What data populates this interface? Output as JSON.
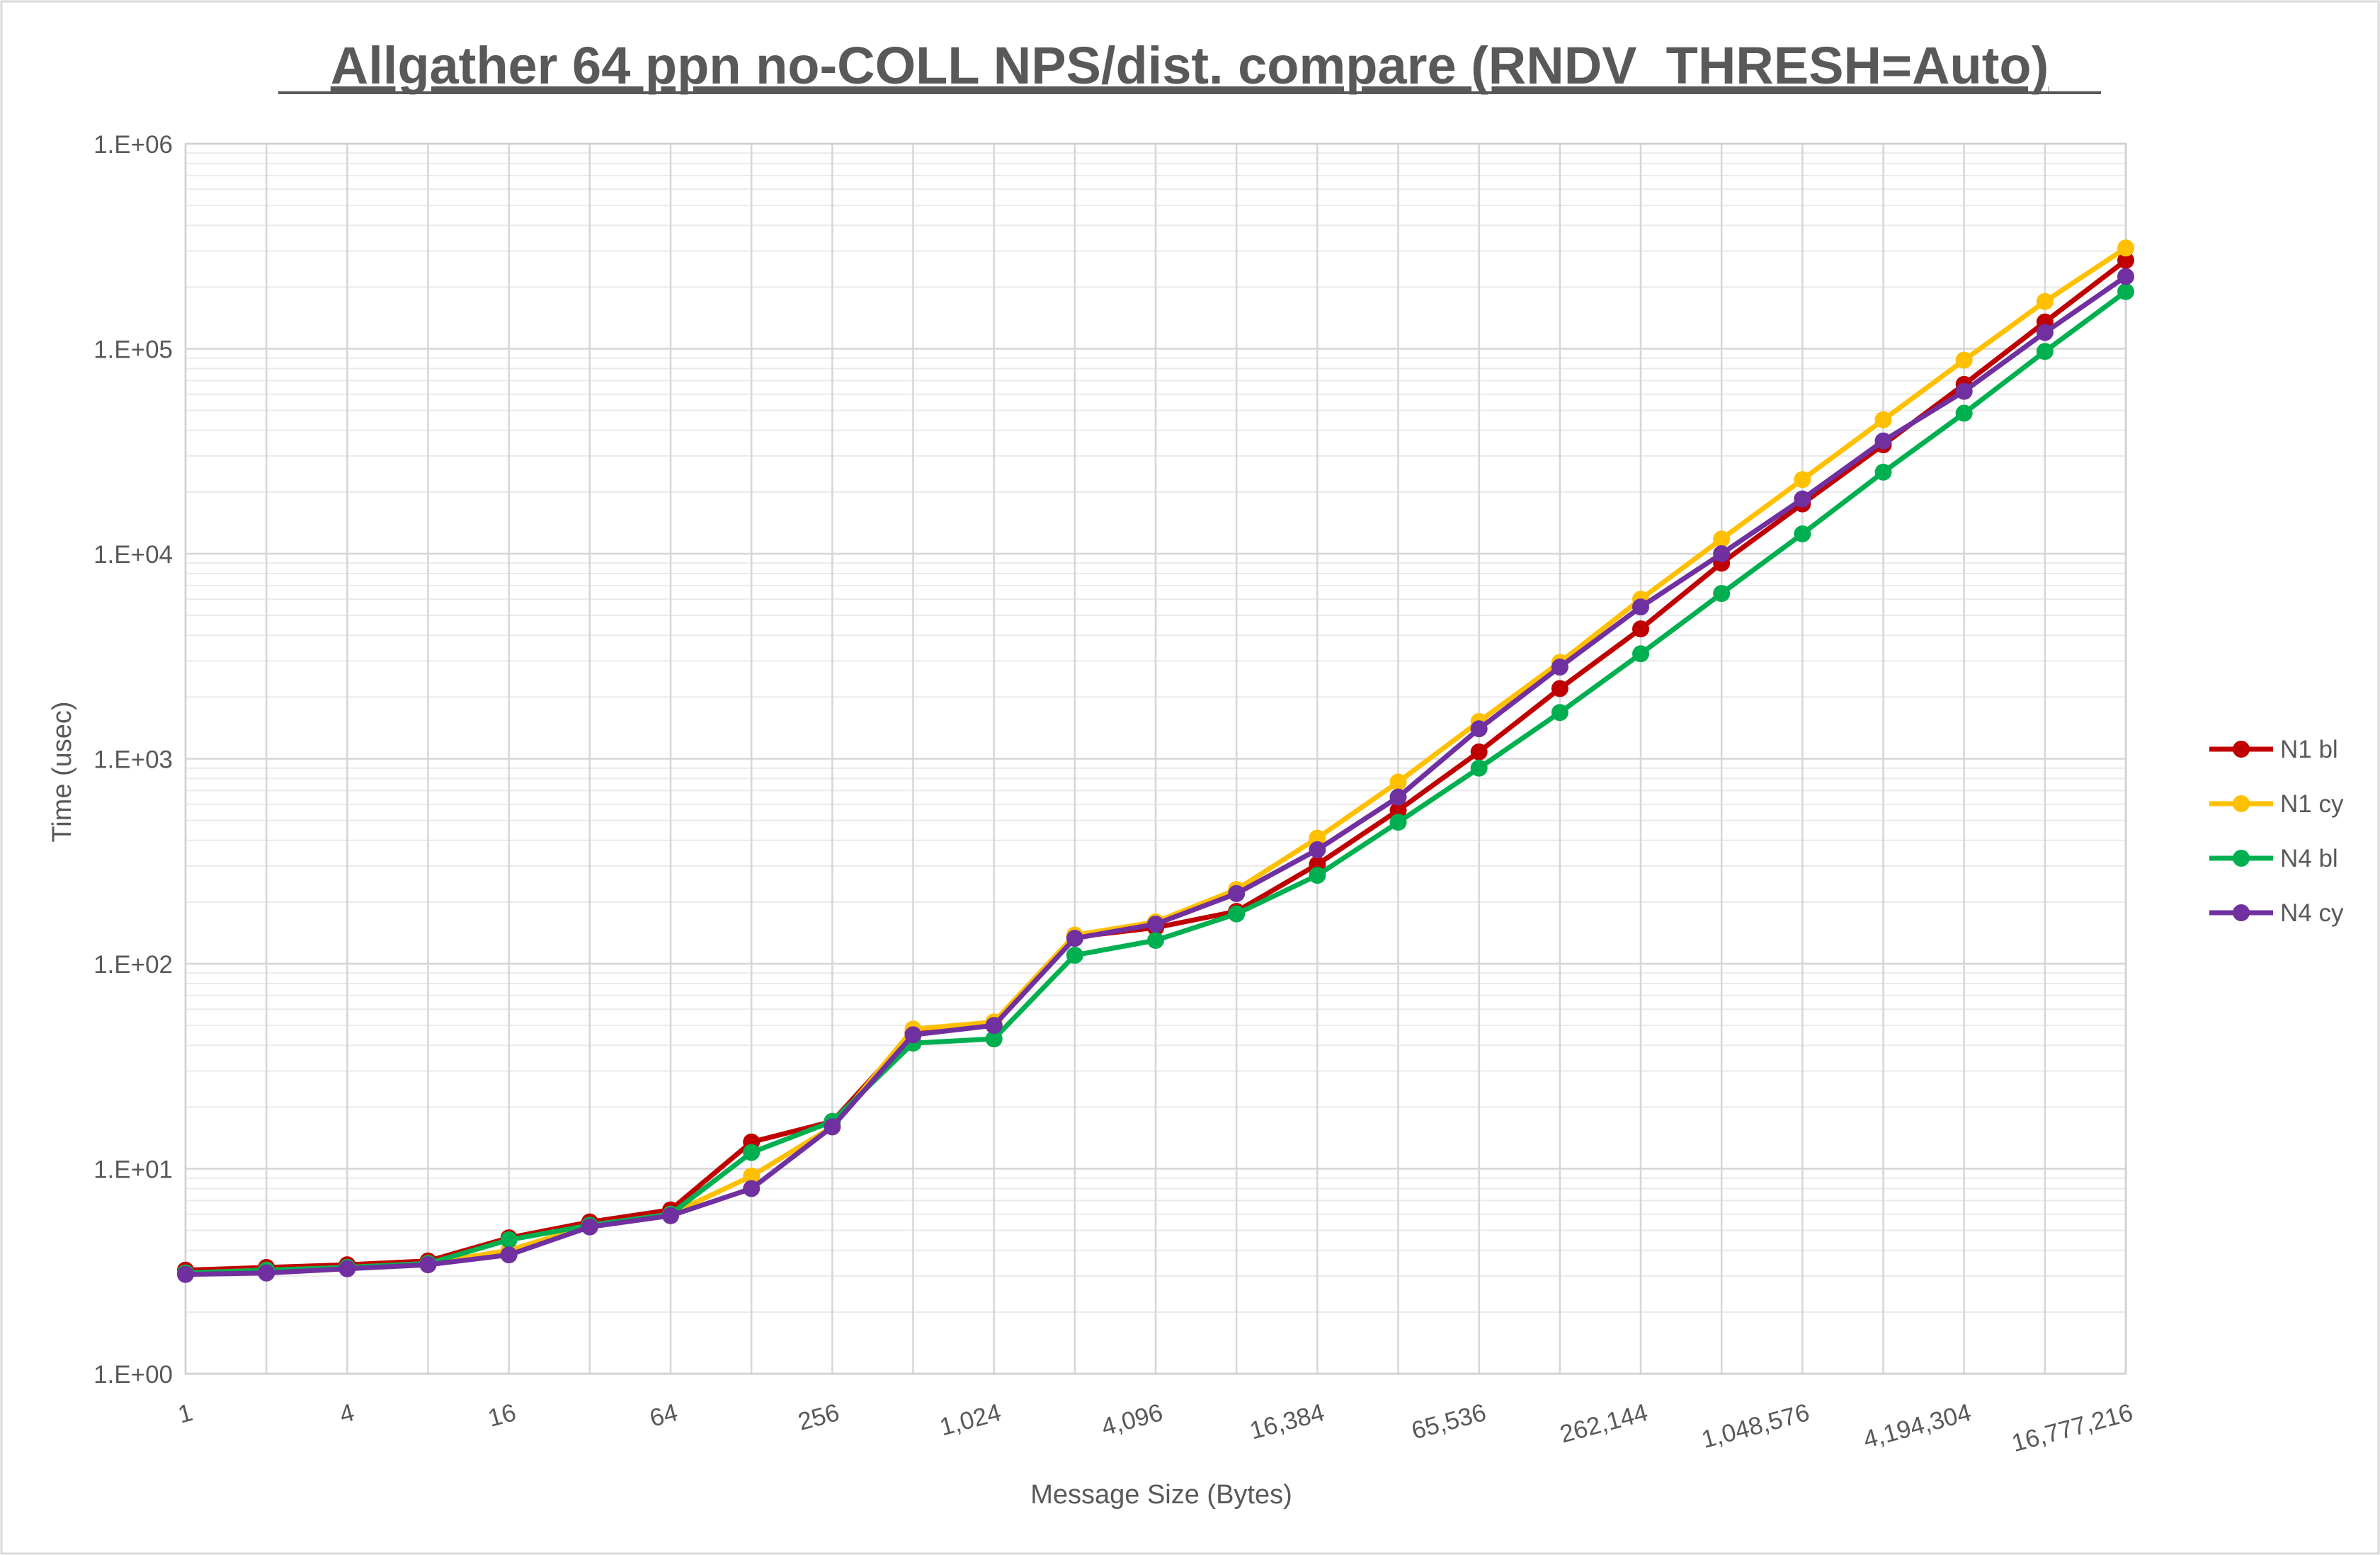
{
  "chart_data": {
    "type": "line",
    "title": "Allgather 64 ppn no-COLL NPS/dist. compare (RNDV_THRESH=Auto)",
    "xlabel": "Message Size (Bytes)",
    "ylabel": "Time (usec)",
    "x_scale": "log2",
    "y_scale": "log10",
    "ylim": [
      1,
      1000000
    ],
    "x": [
      1,
      2,
      4,
      8,
      16,
      32,
      64,
      128,
      256,
      512,
      1024,
      2048,
      4096,
      8192,
      16384,
      32768,
      65536,
      131072,
      262144,
      524288,
      1048576,
      2097152,
      4194304,
      8388608,
      16777216
    ],
    "x_tick_labels": [
      "1",
      "4",
      "16",
      "64",
      "256",
      "1,024",
      "4,096",
      "16,384",
      "65,536",
      "262,144",
      "1,048,576",
      "4,194,304",
      "16,777,216"
    ],
    "y_tick_labels": [
      "1.E+00",
      "1.E+01",
      "1.E+02",
      "1.E+03",
      "1.E+04",
      "1.E+05",
      "1.E+06"
    ],
    "legend_position": "right",
    "series": [
      {
        "name": "N1 bl",
        "color": "#C00000",
        "values": [
          3.2,
          3.3,
          3.4,
          3.55,
          4.6,
          5.5,
          6.3,
          13.5,
          17,
          46,
          50,
          135,
          150,
          180,
          305,
          560,
          1080,
          2200,
          4300,
          9000,
          17500,
          34000,
          67000,
          135000,
          270000
        ]
      },
      {
        "name": "N1 cy",
        "color": "#FFC000",
        "values": [
          3.1,
          3.2,
          3.3,
          3.45,
          4.0,
          5.3,
          6.0,
          9.2,
          16,
          48,
          52,
          138,
          160,
          230,
          410,
          770,
          1520,
          2950,
          6000,
          11800,
          23000,
          45000,
          88000,
          170000,
          310000
        ]
      },
      {
        "name": "N4 bl",
        "color": "#00B050",
        "values": [
          3.1,
          3.2,
          3.3,
          3.45,
          4.5,
          5.3,
          6.0,
          12.0,
          17,
          41,
          43,
          110,
          130,
          175,
          270,
          490,
          900,
          1680,
          3250,
          6400,
          12500,
          25000,
          48500,
          97000,
          190000
        ]
      },
      {
        "name": "N4 cy",
        "color": "#7030A0",
        "values": [
          3.05,
          3.1,
          3.25,
          3.4,
          3.8,
          5.2,
          5.9,
          8.0,
          16,
          45,
          50,
          133,
          156,
          220,
          360,
          650,
          1400,
          2800,
          5500,
          10000,
          18500,
          35500,
          62000,
          120000,
          225000
        ]
      }
    ]
  }
}
